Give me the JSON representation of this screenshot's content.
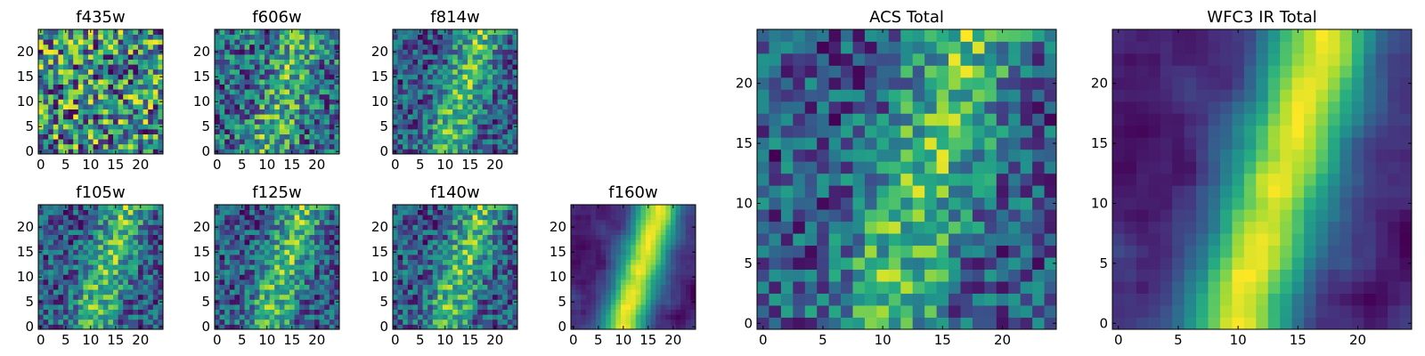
{
  "chart_data": [
    {
      "type": "heatmap",
      "title": "f435w",
      "colormap": "viridis",
      "grid_size": [
        25,
        25
      ],
      "x_range": [
        -0.5,
        24.5
      ],
      "y_range": [
        -0.5,
        24.5
      ],
      "xticks": [
        0,
        5,
        10,
        15,
        20
      ],
      "yticks": [
        0,
        5,
        10,
        15,
        20
      ],
      "pattern": "uniform noise"
    },
    {
      "type": "heatmap",
      "title": "f606w",
      "colormap": "viridis",
      "grid_size": [
        25,
        25
      ],
      "x_range": [
        -0.5,
        24.5
      ],
      "y_range": [
        -0.5,
        24.5
      ],
      "xticks": [
        0,
        5,
        10,
        15,
        20
      ],
      "yticks": [
        0,
        5,
        10,
        15,
        20
      ],
      "pattern": "faint diagonal band"
    },
    {
      "type": "heatmap",
      "title": "f814w",
      "colormap": "viridis",
      "grid_size": [
        25,
        25
      ],
      "x_range": [
        -0.5,
        24.5
      ],
      "y_range": [
        -0.5,
        24.5
      ],
      "xticks": [
        0,
        5,
        10,
        15,
        20
      ],
      "yticks": [
        0,
        5,
        10,
        15,
        20
      ],
      "pattern": "diagonal band"
    },
    {
      "type": "heatmap",
      "title": "f105w",
      "colormap": "viridis",
      "grid_size": [
        25,
        25
      ],
      "x_range": [
        -0.5,
        24.5
      ],
      "y_range": [
        -0.5,
        24.5
      ],
      "xticks": [
        0,
        5,
        10,
        15,
        20
      ],
      "yticks": [
        0,
        5,
        10,
        15,
        20
      ],
      "pattern": "diagonal band"
    },
    {
      "type": "heatmap",
      "title": "f125w",
      "colormap": "viridis",
      "grid_size": [
        25,
        25
      ],
      "x_range": [
        -0.5,
        24.5
      ],
      "y_range": [
        -0.5,
        24.5
      ],
      "xticks": [
        0,
        5,
        10,
        15,
        20
      ],
      "yticks": [
        0,
        5,
        10,
        15,
        20
      ],
      "pattern": "diagonal band"
    },
    {
      "type": "heatmap",
      "title": "f140w",
      "colormap": "viridis",
      "grid_size": [
        25,
        25
      ],
      "x_range": [
        -0.5,
        24.5
      ],
      "y_range": [
        -0.5,
        24.5
      ],
      "xticks": [
        0,
        5,
        10,
        15,
        20
      ],
      "yticks": [
        0,
        5,
        10,
        15,
        20
      ],
      "pattern": "diagonal band"
    },
    {
      "type": "heatmap",
      "title": "f160w",
      "colormap": "viridis",
      "grid_size": [
        25,
        25
      ],
      "x_range": [
        -0.5,
        24.5
      ],
      "y_range": [
        -0.5,
        24.5
      ],
      "xticks": [
        0,
        5,
        10,
        15,
        20
      ],
      "yticks": [
        0,
        5,
        10,
        15,
        20
      ],
      "pattern": "smooth diagonal band"
    },
    {
      "type": "heatmap",
      "title": "ACS Total",
      "colormap": "viridis",
      "grid_size": [
        25,
        25
      ],
      "x_range": [
        -0.5,
        24.5
      ],
      "y_range": [
        -0.5,
        24.5
      ],
      "xticks": [
        0,
        5,
        10,
        15,
        20
      ],
      "yticks": [
        0,
        5,
        10,
        15,
        20
      ],
      "pattern": "diagonal band"
    },
    {
      "type": "heatmap",
      "title": "WFC3 IR Total",
      "colormap": "viridis",
      "grid_size": [
        25,
        25
      ],
      "x_range": [
        -0.5,
        24.5
      ],
      "y_range": [
        -0.5,
        24.5
      ],
      "xticks": [
        0,
        5,
        10,
        15,
        20
      ],
      "yticks": [
        0,
        5,
        10,
        15,
        20
      ],
      "pattern": "smooth diagonal band"
    }
  ]
}
